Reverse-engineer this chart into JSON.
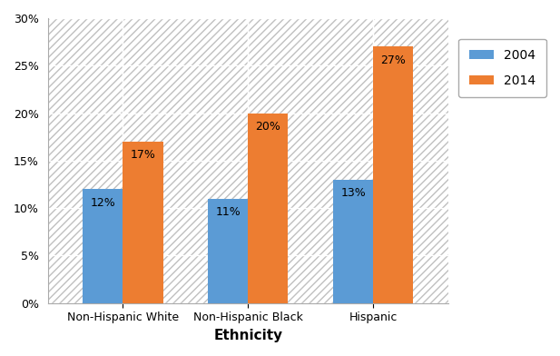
{
  "categories": [
    "Non-Hispanic White",
    "Non-Hispanic Black",
    "Hispanic"
  ],
  "values_2004": [
    0.12,
    0.11,
    0.13
  ],
  "values_2014": [
    0.17,
    0.2,
    0.27
  ],
  "labels_2004": [
    "12%",
    "11%",
    "13%"
  ],
  "labels_2014": [
    "17%",
    "20%",
    "27%"
  ],
  "color_2004": "#5B9BD5",
  "color_2014": "#ED7D31",
  "legend_labels": [
    "2004",
    "2014"
  ],
  "xlabel": "Ethnicity",
  "ylim": [
    0,
    0.3
  ],
  "yticks": [
    0.0,
    0.05,
    0.1,
    0.15,
    0.2,
    0.25,
    0.3
  ],
  "bar_width": 0.32,
  "label_fontsize": 9,
  "axis_label_fontsize": 11,
  "tick_fontsize": 9,
  "legend_fontsize": 10,
  "background_color": "#ffffff",
  "plot_bg_color": "#e8e8e8",
  "hatch_pattern": "////",
  "grid_color": "#ffffff"
}
